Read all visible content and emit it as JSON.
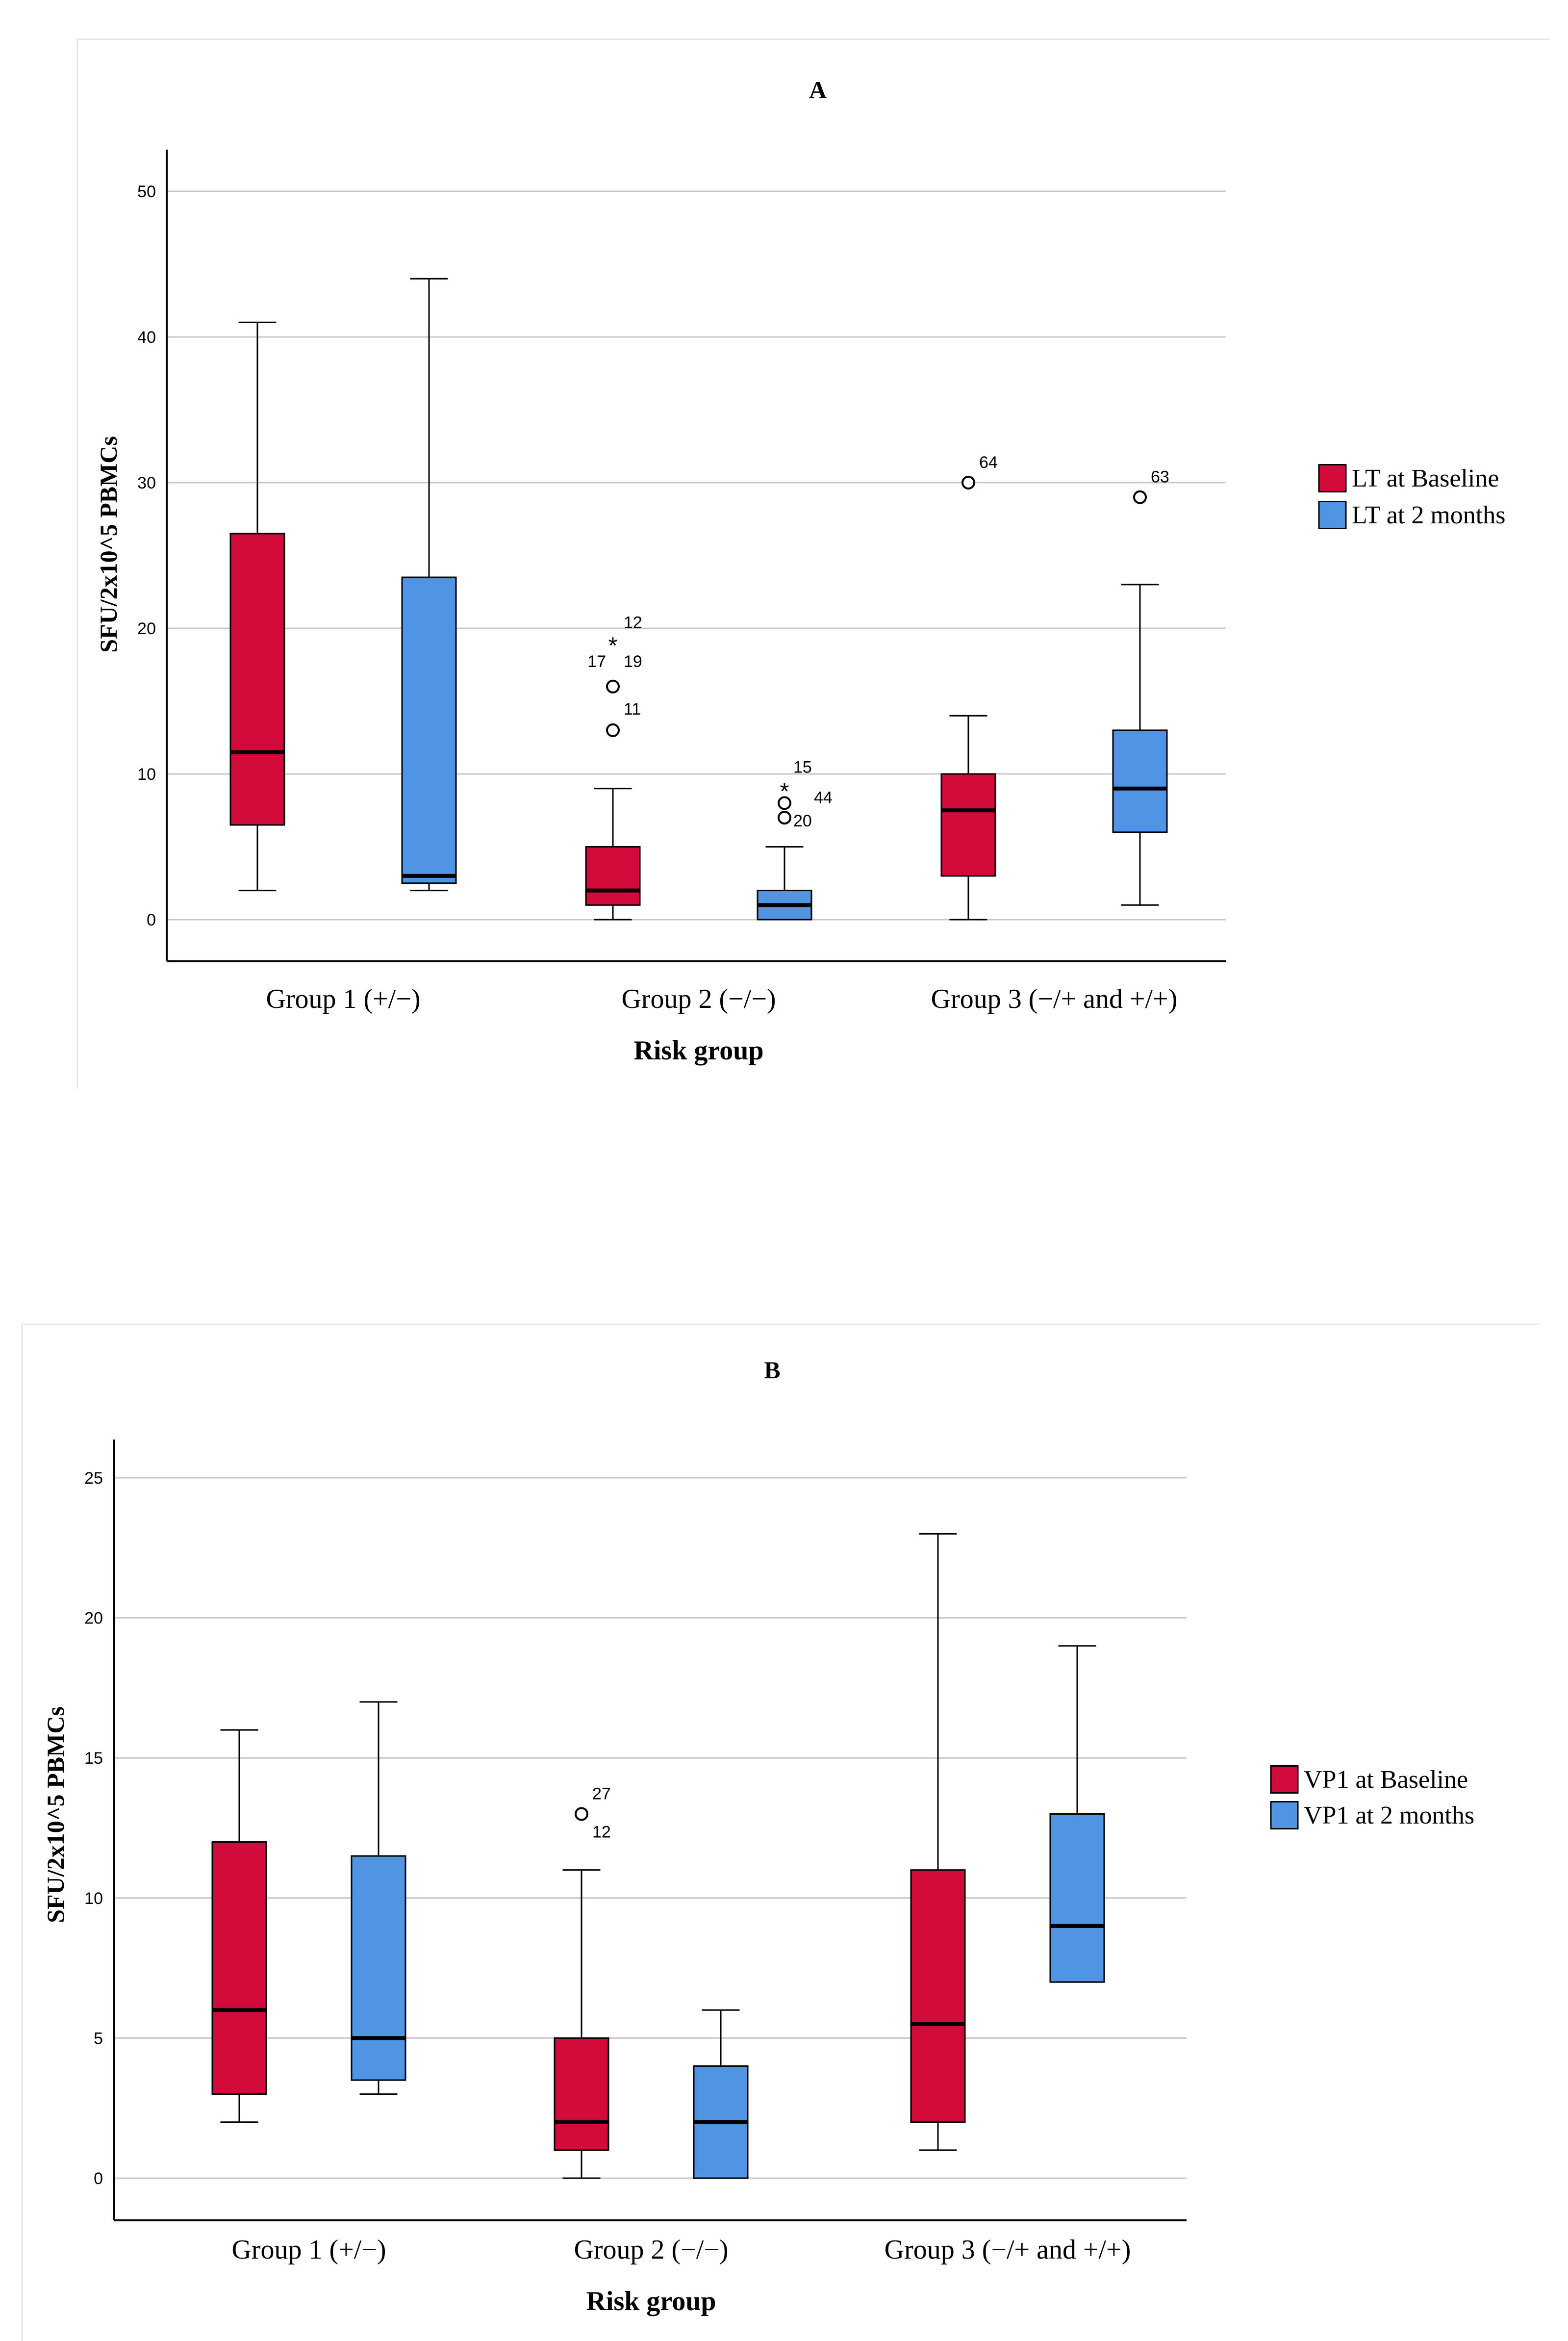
{
  "chart_data": [
    {
      "panel": "A",
      "type": "box",
      "title": "A",
      "xlabel": "Risk group",
      "ylabel": "SFU/2x10^5 PBMCs",
      "ylim": [
        0,
        52
      ],
      "yticks": [
        0,
        10,
        20,
        30,
        40,
        50
      ],
      "grid": true,
      "legend_position": "right",
      "categories": [
        "Group 1 (+/−)",
        "Group 2 (−/−)",
        "Group 3 (−/+ and +/+)"
      ],
      "series": [
        {
          "name": "LT at Baseline",
          "color": "#d10a3b",
          "boxes": [
            {
              "min": 2,
              "q1": 6.5,
              "median": 11.5,
              "q3": 26.5,
              "max": 41,
              "outliers": []
            },
            {
              "min": 0,
              "q1": 1,
              "median": 2,
              "q3": 5,
              "max": 9,
              "outliers": [
                {
                  "value": 19,
                  "label": "12",
                  "marker": "star"
                },
                {
                  "value": 16,
                  "label": "17",
                  "marker": "circle"
                },
                {
                  "value": 16,
                  "label": "19",
                  "marker": "circle"
                },
                {
                  "value": 13,
                  "label": "11",
                  "marker": "circle"
                }
              ]
            },
            {
              "min": 0,
              "q1": 3,
              "median": 7.5,
              "q3": 10,
              "max": 14,
              "outliers": [
                {
                  "value": 30,
                  "label": "64",
                  "marker": "circle"
                }
              ]
            }
          ]
        },
        {
          "name": "LT at 2 months",
          "color": "#4f95e3",
          "boxes": [
            {
              "min": 2,
              "q1": 2.5,
              "median": 3,
              "q3": 23.5,
              "max": 44,
              "outliers": []
            },
            {
              "min": 0,
              "q1": 0,
              "median": 1,
              "q3": 2,
              "max": 5,
              "outliers": [
                {
                  "value": 9,
                  "label": "15",
                  "marker": "star"
                },
                {
                  "value": 8,
                  "label": "44",
                  "marker": "circle"
                },
                {
                  "value": 7,
                  "label": "20",
                  "marker": "circle"
                }
              ]
            },
            {
              "min": 1,
              "q1": 6,
              "median": 9,
              "q3": 13,
              "max": 23,
              "outliers": [
                {
                  "value": 29,
                  "label": "63",
                  "marker": "circle"
                }
              ]
            }
          ]
        }
      ]
    },
    {
      "panel": "B",
      "type": "box",
      "title": "B",
      "xlabel": "Risk group",
      "ylabel": "SFU/2x10^5 PBMCs",
      "ylim": [
        0,
        26
      ],
      "yticks": [
        0,
        5,
        10,
        15,
        20,
        25
      ],
      "grid": true,
      "legend_position": "right",
      "categories": [
        "Group 1 (+/−)",
        "Group 2 (−/−)",
        "Group 3 (−/+ and +/+)"
      ],
      "series": [
        {
          "name": "VP1 at Baseline",
          "color": "#d10a3b",
          "boxes": [
            {
              "min": 2,
              "q1": 3,
              "median": 6,
              "q3": 12,
              "max": 16,
              "outliers": []
            },
            {
              "min": 0,
              "q1": 1,
              "median": 2,
              "q3": 5,
              "max": 11,
              "outliers": [
                {
                  "value": 13,
                  "label": "27",
                  "marker": "circle"
                },
                {
                  "value": 13,
                  "label": "12",
                  "marker": "circle"
                }
              ]
            },
            {
              "min": 1,
              "q1": 2,
              "median": 5.5,
              "q3": 11,
              "max": 23,
              "outliers": []
            }
          ]
        },
        {
          "name": "VP1 at 2 months",
          "color": "#4f95e3",
          "boxes": [
            {
              "min": 3,
              "q1": 3.5,
              "median": 5,
              "q3": 11.5,
              "max": 17,
              "outliers": []
            },
            {
              "min": 0,
              "q1": 0,
              "median": 2,
              "q3": 4,
              "max": 6,
              "outliers": []
            },
            {
              "min": 7,
              "q1": 7,
              "median": 9,
              "q3": 13,
              "max": 19,
              "outliers": []
            }
          ]
        }
      ]
    }
  ]
}
